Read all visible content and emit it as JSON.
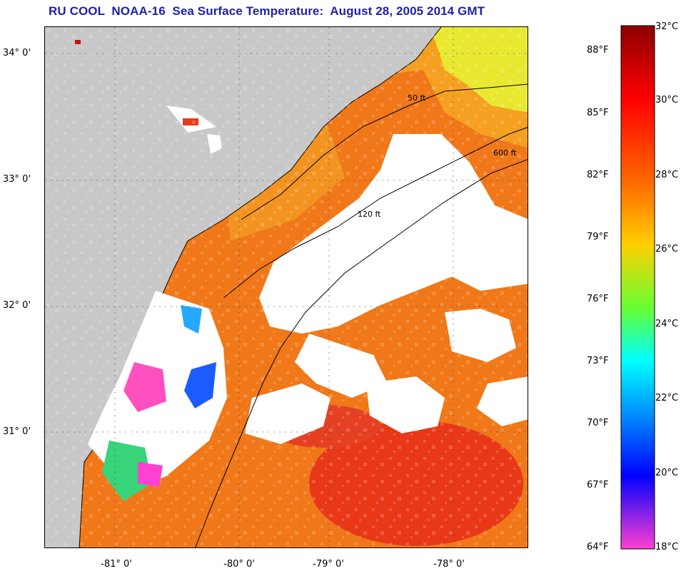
{
  "title": "RU COOL  NOAA-16  Sea Surface Temperature:  August 28, 2005 2014 GMT",
  "map": {
    "lat_labels": [
      "34° 0'",
      "33° 0'",
      "32° 0'",
      "31° 0'"
    ],
    "lon_labels": [
      "-81° 0'",
      "-80° 0'",
      "-79° 0'",
      "-78° 0'"
    ],
    "contour_labels": [
      "50 ft",
      "120 ft",
      "600 ft"
    ],
    "colors": {
      "land": "#c8c8c8",
      "cloud": "#ffffff",
      "sst_warm": "#f07818",
      "sst_hot": "#e83818",
      "sst_mid": "#f5a020",
      "sst_cool": "#e8e830",
      "sst_cold": "#2aa8ff",
      "sst_min": "#ff50c0"
    }
  },
  "colorbar": {
    "fahrenheit_labels": [
      "88°F",
      "85°F",
      "82°F",
      "79°F",
      "76°F",
      "73°F",
      "70°F",
      "67°F",
      "64°F"
    ],
    "celsius_labels": [
      "32°C",
      "30°C",
      "28°C",
      "26°C",
      "24°C",
      "22°C",
      "20°C",
      "18°C"
    ]
  }
}
